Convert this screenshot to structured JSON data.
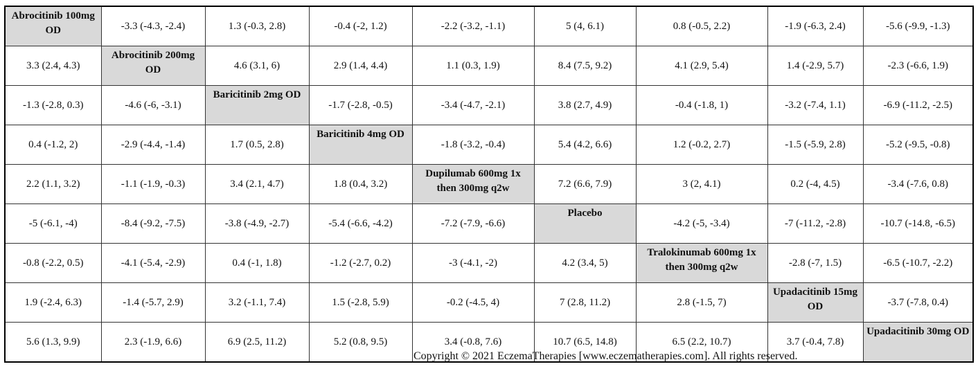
{
  "treatments": [
    "Abrocitinib 100mg OD",
    "Abrocitinib 200mg OD",
    "Baricitinib 2mg OD",
    "Baricitinib 4mg OD",
    "Dupilumab 600mg 1x then 300mg q2w",
    "Placebo",
    "Tralokinumab 600mg 1x then 300mg q2w",
    "Upadacitinib 15mg OD",
    "Upadacitinib 30mg OD"
  ],
  "rows": [
    [
      "Abrocitinib 100mg OD",
      "-3.3 (-4.3, -2.4)",
      "1.3 (-0.3, 2.8)",
      "-0.4 (-2, 1.2)",
      "-2.2 (-3.2, -1.1)",
      "5 (4, 6.1)",
      "0.8 (-0.5, 2.2)",
      "-1.9 (-6.3, 2.4)",
      "-5.6 (-9.9, -1.3)"
    ],
    [
      "3.3 (2.4, 4.3)",
      "Abrocitinib 200mg OD",
      "4.6 (3.1, 6)",
      "2.9 (1.4, 4.4)",
      "1.1 (0.3, 1.9)",
      "8.4 (7.5, 9.2)",
      "4.1 (2.9, 5.4)",
      "1.4 (-2.9, 5.7)",
      "-2.3 (-6.6, 1.9)"
    ],
    [
      "-1.3 (-2.8, 0.3)",
      "-4.6 (-6, -3.1)",
      "Baricitinib 2mg OD",
      "-1.7 (-2.8, -0.5)",
      "-3.4 (-4.7, -2.1)",
      "3.8 (2.7, 4.9)",
      "-0.4 (-1.8, 1)",
      "-3.2 (-7.4, 1.1)",
      "-6.9 (-11.2, -2.5)"
    ],
    [
      "0.4 (-1.2, 2)",
      "-2.9 (-4.4, -1.4)",
      "1.7 (0.5, 2.8)",
      "Baricitinib 4mg OD",
      "-1.8 (-3.2, -0.4)",
      "5.4 (4.2, 6.6)",
      "1.2 (-0.2, 2.7)",
      "-1.5 (-5.9, 2.8)",
      "-5.2 (-9.5, -0.8)"
    ],
    [
      "2.2 (1.1, 3.2)",
      "-1.1 (-1.9, -0.3)",
      "3.4 (2.1, 4.7)",
      "1.8 (0.4, 3.2)",
      "Dupilumab 600mg 1x then 300mg q2w",
      "7.2 (6.6, 7.9)",
      "3 (2, 4.1)",
      "0.2 (-4, 4.5)",
      "-3.4 (-7.6, 0.8)"
    ],
    [
      "-5 (-6.1, -4)",
      "-8.4 (-9.2, -7.5)",
      "-3.8 (-4.9, -2.7)",
      "-5.4 (-6.6, -4.2)",
      "-7.2 (-7.9, -6.6)",
      "Placebo",
      "-4.2 (-5, -3.4)",
      "-7 (-11.2, -2.8)",
      "-10.7 (-14.8, -6.5)"
    ],
    [
      "-0.8 (-2.2, 0.5)",
      "-4.1 (-5.4, -2.9)",
      "0.4 (-1, 1.8)",
      "-1.2 (-2.7, 0.2)",
      "-3 (-4.1, -2)",
      "4.2 (3.4, 5)",
      "Tralokinumab 600mg 1x then 300mg q2w",
      "-2.8 (-7, 1.5)",
      "-6.5 (-10.7, -2.2)"
    ],
    [
      "1.9 (-2.4, 6.3)",
      "-1.4 (-5.7, 2.9)",
      "3.2 (-1.1, 7.4)",
      "1.5 (-2.8, 5.9)",
      "-0.2 (-4.5, 4)",
      "7 (2.8, 11.2)",
      "2.8 (-1.5, 7)",
      "Upadacitinib 15mg OD",
      "-3.7 (-7.8, 0.4)"
    ],
    [
      "5.6 (1.3, 9.9)",
      "2.3 (-1.9, 6.6)",
      "6.9 (2.5, 11.2)",
      "5.2 (0.8, 9.5)",
      "3.4 (-0.8, 7.6)",
      "10.7 (6.5, 14.8)",
      "6.5 (2.2, 10.7)",
      "3.7 (-0.4, 7.8)",
      "Upadacitinib 30mg OD"
    ]
  ],
  "diagonal_fill": "#d9d9d9",
  "footer": {
    "copyright": "Copyright © 2021 EczemaTherapies [www.eczematherapies.com]. All rights reserved."
  }
}
